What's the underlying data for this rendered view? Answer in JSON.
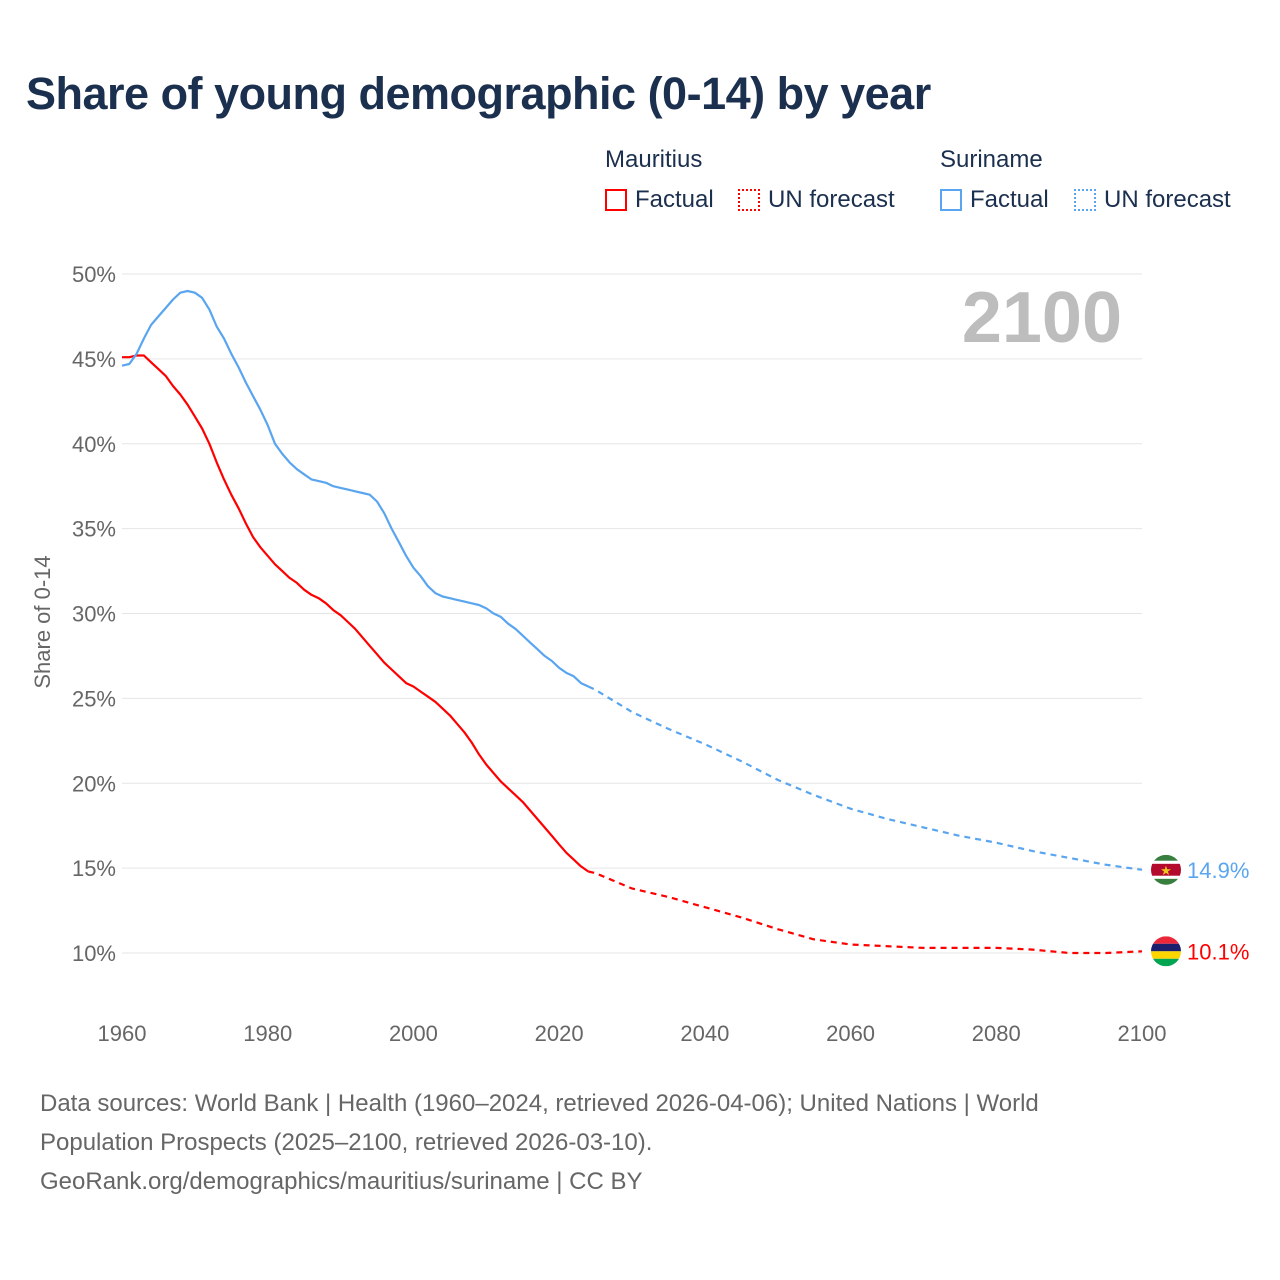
{
  "title": "Share of young demographic (0-14) by year",
  "legend": {
    "groups": [
      {
        "name": "Mauritius",
        "color": "#ff0000",
        "factual": "Factual",
        "forecast": "UN forecast"
      },
      {
        "name": "Suriname",
        "color": "#5aa5ef",
        "factual": "Factual",
        "forecast": "UN forecast"
      }
    ]
  },
  "year_label": "2100",
  "footer": {
    "line1": "Data sources: World Bank | Health (1960–2024, retrieved 2026-04-06); United Nations | World",
    "line2": "Population Prospects (2025–2100, retrieved 2026-03-10).",
    "line3": "GeoRank.org/demographics/mauritius/suriname | CC BY"
  },
  "chart_data": {
    "type": "line",
    "title": "Share of young demographic (0-14) by year",
    "xlabel": "",
    "ylabel": "Share of 0-14",
    "xlim": [
      1960,
      2100
    ],
    "ylim": [
      10,
      50
    ],
    "xticks": [
      "1960",
      "1980",
      "2000",
      "2020",
      "2040",
      "2060",
      "2080",
      "2100"
    ],
    "yticks": [
      "10%",
      "15%",
      "20%",
      "25%",
      "30%",
      "35%",
      "40%",
      "45%",
      "50%"
    ],
    "grid": true,
    "legend_position": "top-right",
    "series": [
      {
        "name": "Mauritius",
        "color": "#ff0000",
        "end_label": "10.1%",
        "factual": {
          "x": [
            1960,
            1961,
            1962,
            1963,
            1964,
            1965,
            1966,
            1967,
            1968,
            1969,
            1970,
            1971,
            1972,
            1973,
            1974,
            1975,
            1976,
            1977,
            1978,
            1979,
            1980,
            1981,
            1982,
            1983,
            1984,
            1985,
            1986,
            1987,
            1988,
            1989,
            1990,
            1991,
            1992,
            1993,
            1994,
            1995,
            1996,
            1997,
            1998,
            1999,
            2000,
            2001,
            2002,
            2003,
            2004,
            2005,
            2006,
            2007,
            2008,
            2009,
            2010,
            2011,
            2012,
            2013,
            2014,
            2015,
            2016,
            2017,
            2018,
            2019,
            2020,
            2021,
            2022,
            2023,
            2024
          ],
          "y": [
            45.1,
            45.1,
            45.2,
            45.2,
            44.8,
            44.4,
            44.0,
            43.4,
            42.9,
            42.3,
            41.6,
            40.9,
            40.0,
            38.9,
            37.9,
            37.0,
            36.2,
            35.3,
            34.5,
            33.9,
            33.4,
            32.9,
            32.5,
            32.1,
            31.8,
            31.4,
            31.1,
            30.9,
            30.6,
            30.2,
            29.9,
            29.5,
            29.1,
            28.6,
            28.1,
            27.6,
            27.1,
            26.7,
            26.3,
            25.9,
            25.7,
            25.4,
            25.1,
            24.8,
            24.4,
            24.0,
            23.5,
            23.0,
            22.4,
            21.7,
            21.1,
            20.6,
            20.1,
            19.7,
            19.3,
            18.9,
            18.4,
            17.9,
            17.4,
            16.9,
            16.4,
            15.9,
            15.5,
            15.1,
            14.8
          ]
        },
        "forecast": {
          "x": [
            2024,
            2025,
            2030,
            2035,
            2040,
            2045,
            2050,
            2055,
            2060,
            2065,
            2070,
            2075,
            2080,
            2085,
            2090,
            2095,
            2100
          ],
          "y": [
            14.8,
            14.7,
            13.8,
            13.3,
            12.7,
            12.1,
            11.4,
            10.8,
            10.5,
            10.4,
            10.3,
            10.3,
            10.3,
            10.2,
            10.0,
            10.0,
            10.1
          ]
        }
      },
      {
        "name": "Suriname",
        "color": "#5aa5ef",
        "end_label": "14.9%",
        "factual": {
          "x": [
            1960,
            1961,
            1962,
            1963,
            1964,
            1965,
            1966,
            1967,
            1968,
            1969,
            1970,
            1971,
            1972,
            1973,
            1974,
            1975,
            1976,
            1977,
            1978,
            1979,
            1980,
            1981,
            1982,
            1983,
            1984,
            1985,
            1986,
            1987,
            1988,
            1989,
            1990,
            1991,
            1992,
            1993,
            1994,
            1995,
            1996,
            1997,
            1998,
            1999,
            2000,
            2001,
            2002,
            2003,
            2004,
            2005,
            2006,
            2007,
            2008,
            2009,
            2010,
            2011,
            2012,
            2013,
            2014,
            2015,
            2016,
            2017,
            2018,
            2019,
            2020,
            2021,
            2022,
            2023,
            2024
          ],
          "y": [
            44.6,
            44.7,
            45.3,
            46.2,
            47.0,
            47.5,
            48.0,
            48.5,
            48.9,
            49.0,
            48.9,
            48.6,
            47.9,
            46.9,
            46.2,
            45.3,
            44.5,
            43.6,
            42.8,
            42.0,
            41.1,
            40.0,
            39.4,
            38.9,
            38.5,
            38.2,
            37.9,
            37.8,
            37.7,
            37.5,
            37.4,
            37.3,
            37.2,
            37.1,
            37.0,
            36.6,
            35.9,
            35.0,
            34.2,
            33.4,
            32.7,
            32.2,
            31.6,
            31.2,
            31.0,
            30.9,
            30.8,
            30.7,
            30.6,
            30.5,
            30.3,
            30.0,
            29.8,
            29.4,
            29.1,
            28.7,
            28.3,
            27.9,
            27.5,
            27.2,
            26.8,
            26.5,
            26.3,
            25.9,
            25.7
          ]
        },
        "forecast": {
          "x": [
            2024,
            2025,
            2030,
            2035,
            2040,
            2045,
            2050,
            2055,
            2060,
            2065,
            2070,
            2075,
            2080,
            2085,
            2090,
            2095,
            2100
          ],
          "y": [
            25.7,
            25.5,
            24.2,
            23.2,
            22.3,
            21.3,
            20.2,
            19.3,
            18.5,
            17.9,
            17.4,
            16.9,
            16.5,
            16.0,
            15.6,
            15.2,
            14.9
          ]
        }
      }
    ]
  }
}
